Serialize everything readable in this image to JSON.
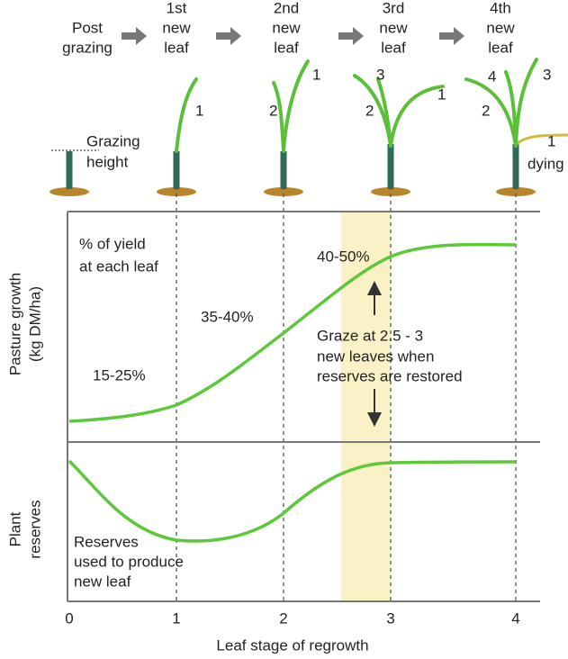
{
  "header": {
    "stages": [
      [
        "Post",
        "grazing"
      ],
      [
        "1st",
        "new",
        "leaf"
      ],
      [
        "2nd",
        "new",
        "leaf"
      ],
      [
        "3rd",
        "new",
        "leaf"
      ],
      [
        "4th",
        "new",
        "leaf"
      ]
    ]
  },
  "plants": {
    "grazing_height": [
      "Grazing",
      "height"
    ],
    "leaf_numbers": [
      [
        "1"
      ],
      [
        "1",
        "2"
      ],
      [
        "1",
        "2",
        "3"
      ],
      [
        "1",
        "2",
        "3",
        "4"
      ]
    ],
    "dying": "dying"
  },
  "chart": {
    "yield_note": [
      "% of yield",
      "at each leaf"
    ],
    "ranges": [
      "15-25%",
      "35-40%",
      "40-50%"
    ],
    "graze_note": [
      "Graze at 2.5 - 3",
      "new leaves when",
      "reserves are restored"
    ],
    "reserves_note": [
      "Reserves",
      "used to produce",
      "new leaf"
    ],
    "y_labels": [
      [
        "Pasture growth",
        "(kg DM/ha)"
      ],
      [
        "Plant",
        "reserves"
      ]
    ],
    "x_ticks": [
      "0",
      "1",
      "2",
      "3",
      "4"
    ],
    "x_label": "Leaf stage of regrowth"
  }
}
